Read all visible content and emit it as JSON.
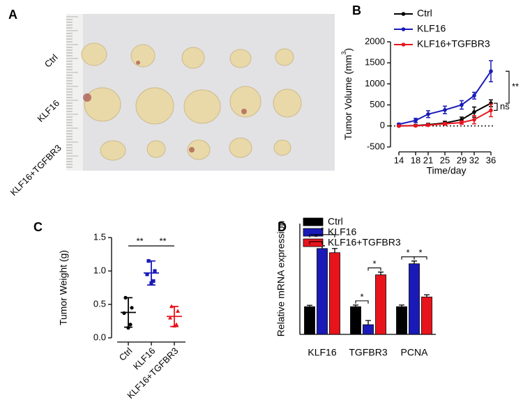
{
  "panel_a": {
    "letter": "A",
    "row_labels": [
      "Ctrl",
      "KLF16",
      "KLF16+TGFBR3"
    ]
  },
  "chart_data": [
    {
      "type": "line",
      "panel_label": "B",
      "x_label": "Time/day",
      "y_label": [
        "Tumor Volume (mm",
        "3",
        ")"
      ],
      "x": [
        14,
        18,
        21,
        25,
        29,
        32,
        36
      ],
      "xlim": [
        12,
        37
      ],
      "xticks": [
        14,
        18,
        21,
        25,
        29,
        32,
        36
      ],
      "ylim": [
        -500,
        2000
      ],
      "yticks": [
        -500,
        0,
        500,
        1000,
        1500,
        2000
      ],
      "zero_line": true,
      "legend": "top",
      "series": [
        {
          "name": "Ctrl",
          "color": "#000000",
          "values": [
            0,
            10,
            30,
            70,
            150,
            330,
            540
          ],
          "errors": [
            10,
            20,
            30,
            40,
            60,
            120,
            80
          ]
        },
        {
          "name": "KLF16",
          "color": "#1a1ab8",
          "values": [
            40,
            130,
            280,
            380,
            500,
            720,
            1300
          ],
          "errors": [
            20,
            50,
            80,
            90,
            100,
            80,
            250
          ]
        },
        {
          "name": "KLF16+TGFBR3",
          "color": "#e8141c",
          "values": [
            0,
            5,
            20,
            50,
            80,
            150,
            370
          ],
          "errors": [
            5,
            10,
            20,
            30,
            40,
            100,
            150
          ]
        }
      ],
      "significance": [
        {
          "label": "**",
          "pair": [
            1,
            0
          ]
        },
        {
          "label": "ns",
          "pair": [
            0,
            2
          ]
        }
      ]
    },
    {
      "type": "dot",
      "panel_label": "C",
      "y_label": "Tumor Weight (g)",
      "ylim": [
        0,
        1.5
      ],
      "yticks": [
        {
          "value": 0,
          "label": "0.0"
        },
        0.5,
        {
          "value": 1,
          "label": "1.0"
        },
        1.5
      ],
      "categories": [
        "Ctrl",
        "KLF16",
        "KLF16+TGFBR3"
      ],
      "groups": [
        {
          "color": "#000000",
          "marker": "circle",
          "points": [
            0.6,
            0.45,
            0.37,
            0.2,
            0.15
          ],
          "mean": 0.38,
          "sd": 0.22
        },
        {
          "color": "#1a1ab8",
          "marker": "square",
          "points": [
            1.15,
            1.0,
            0.95,
            0.85,
            0.82
          ],
          "mean": 0.97,
          "sd": 0.18
        },
        {
          "color": "#e8141c",
          "marker": "triangle",
          "points": [
            0.47,
            0.4,
            0.3,
            0.2,
            0.18
          ],
          "mean": 0.32,
          "sd": 0.15
        }
      ],
      "significance": [
        {
          "label": "**",
          "pair": [
            0,
            1
          ]
        },
        {
          "label": "**",
          "pair": [
            1,
            2
          ]
        }
      ]
    },
    {
      "type": "bar",
      "panel_label": "D",
      "y_label": "Relative mRNA expression",
      "categories": [
        "KLF16",
        "TGFBR3",
        "PCNA"
      ],
      "ylim": [
        0,
        4
      ],
      "series": [
        {
          "name": "Ctrl",
          "color": "#000000",
          "values": [
            1.0,
            1.0,
            1.0
          ],
          "errors": [
            0.05,
            0.06,
            0.06
          ]
        },
        {
          "name": "KLF16",
          "color": "#1a1ab8",
          "values": [
            3.1,
            0.35,
            2.55
          ],
          "errors": [
            0.1,
            0.15,
            0.1
          ]
        },
        {
          "name": "KLF16+TGFBR3",
          "color": "#e8141c",
          "values": [
            2.95,
            2.15,
            1.35
          ],
          "errors": [
            0.15,
            0.1,
            0.08
          ]
        }
      ],
      "significance": [
        {
          "label": "*",
          "category": 0,
          "pair": [
            0,
            1
          ]
        },
        {
          "label": "*",
          "category": 0,
          "pair": [
            0,
            2
          ]
        },
        {
          "label": "*",
          "category": 1,
          "pair": [
            0,
            1
          ]
        },
        {
          "label": "*",
          "category": 1,
          "pair": [
            1,
            2
          ]
        },
        {
          "label": "*",
          "category": 2,
          "pair": [
            0,
            1
          ]
        },
        {
          "label": "*",
          "category": 2,
          "pair": [
            1,
            2
          ]
        }
      ]
    }
  ]
}
